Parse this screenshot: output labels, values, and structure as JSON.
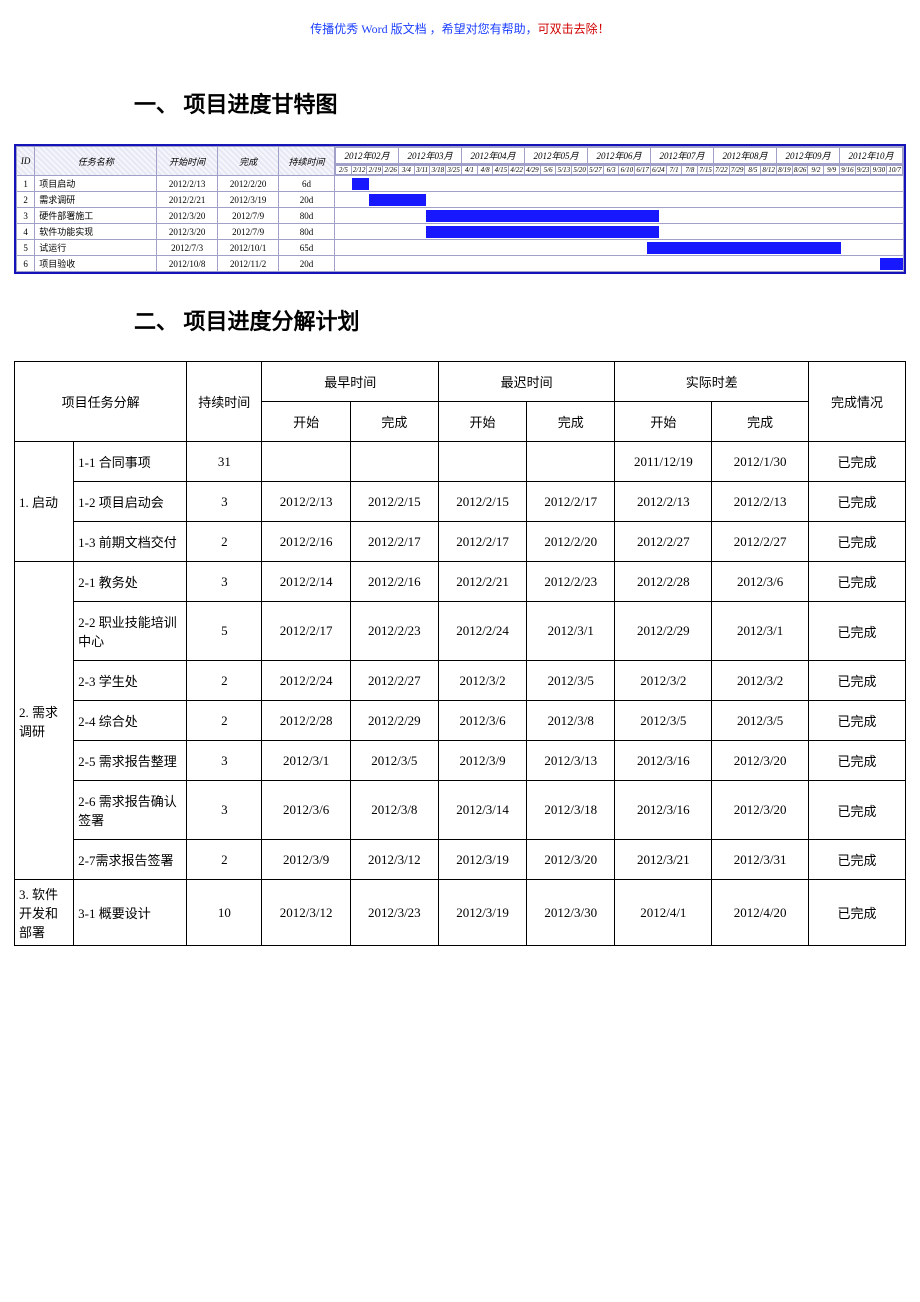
{
  "header": {
    "blue_text": "传播优秀 Word 版文档 ，希望对您有帮助，",
    "red_text": "可双击去除！"
  },
  "section1": {
    "number": "一、",
    "title": "项目进度甘特图"
  },
  "gantt": {
    "header": {
      "id": "ID",
      "task_name": "任务名称",
      "start": "开始时间",
      "end": "完成",
      "duration": "持续时间"
    },
    "months": [
      "2012年02月",
      "2012年03月",
      "2012年04月",
      "2012年05月",
      "2012年06月",
      "2012年07月",
      "2012年08月",
      "2012年09月",
      "2012年10月"
    ],
    "weeks": [
      "2/5",
      "2/12",
      "2/19",
      "2/26",
      "3/4",
      "3/11",
      "3/18",
      "3/25",
      "4/1",
      "4/8",
      "4/15",
      "4/22",
      "4/29",
      "5/6",
      "5/13",
      "5/20",
      "5/27",
      "6/3",
      "6/10",
      "6/17",
      "6/24",
      "7/1",
      "7/8",
      "7/15",
      "7/22",
      "7/29",
      "8/5",
      "8/12",
      "8/19",
      "8/26",
      "9/2",
      "9/9",
      "9/16",
      "9/23",
      "9/30",
      "10/7"
    ],
    "border_color": "#1313b8",
    "bar_color": "#1818ff",
    "rows": [
      {
        "id": "1",
        "name": "项目启动",
        "start": "2012/2/13",
        "end": "2012/2/20",
        "dur": "6d",
        "bar_left_pct": 3,
        "bar_width_pct": 3
      },
      {
        "id": "2",
        "name": "需求调研",
        "start": "2012/2/21",
        "end": "2012/3/19",
        "dur": "20d",
        "bar_left_pct": 6,
        "bar_width_pct": 10
      },
      {
        "id": "3",
        "name": "硬件部署施工",
        "start": "2012/3/20",
        "end": "2012/7/9",
        "dur": "80d",
        "bar_left_pct": 16,
        "bar_width_pct": 41
      },
      {
        "id": "4",
        "name": "软件功能实现",
        "start": "2012/3/20",
        "end": "2012/7/9",
        "dur": "80d",
        "bar_left_pct": 16,
        "bar_width_pct": 41
      },
      {
        "id": "5",
        "name": "试运行",
        "start": "2012/7/3",
        "end": "2012/10/1",
        "dur": "65d",
        "bar_left_pct": 55,
        "bar_width_pct": 34
      },
      {
        "id": "6",
        "name": "项目验收",
        "start": "2012/10/8",
        "end": "2012/11/2",
        "dur": "20d",
        "bar_left_pct": 96,
        "bar_width_pct": 4
      }
    ]
  },
  "section2": {
    "number": "二、",
    "title": "项目进度分解计划"
  },
  "detail": {
    "header": {
      "task_decomp": "项目任务分解",
      "duration": "持续时间",
      "earliest": "最早时间",
      "latest": "最迟时间",
      "actual": "实际时差",
      "completion": "完成情况",
      "start": "开始",
      "end": "完成"
    },
    "groups": [
      {
        "group_label": "1. 启动",
        "rows": [
          {
            "sub": "1-1 合同事项",
            "dur": "31",
            "es": "",
            "ef": "",
            "ls": "",
            "lf": "",
            "as": "2011/12/19",
            "af": "2012/1/30",
            "status": "已完成"
          },
          {
            "sub": "1-2 项目启动会",
            "dur": "3",
            "es": "2012/2/13",
            "ef": "2012/2/15",
            "ls": "2012/2/15",
            "lf": "2012/2/17",
            "as": "2012/2/13",
            "af": "2012/2/13",
            "status": "已完成"
          },
          {
            "sub": "1-3 前期文档交付",
            "dur": "2",
            "es": "2012/2/16",
            "ef": "2012/2/17",
            "ls": "2012/2/17",
            "lf": "2012/2/20",
            "as": "2012/2/27",
            "af": "2012/2/27",
            "status": "已完成"
          }
        ]
      },
      {
        "group_label": "2. 需求调研",
        "rows": [
          {
            "sub": "2-1 教务处",
            "dur": "3",
            "es": "2012/2/14",
            "ef": "2012/2/16",
            "ls": "2012/2/21",
            "lf": "2012/2/23",
            "as": "2012/2/28",
            "af": "2012/3/6",
            "status": "已完成"
          },
          {
            "sub": "2-2 职业技能培训中心",
            "dur": "5",
            "es": "2012/2/17",
            "ef": "2012/2/23",
            "ls": "2012/2/24",
            "lf": "2012/3/1",
            "as": "2012/2/29",
            "af": "2012/3/1",
            "status": "已完成"
          },
          {
            "sub": "2-3 学生处",
            "dur": "2",
            "es": "2012/2/24",
            "ef": "2012/2/27",
            "ls": "2012/3/2",
            "lf": "2012/3/5",
            "as": "2012/3/2",
            "af": "2012/3/2",
            "status": "已完成"
          },
          {
            "sub": "2-4 综合处",
            "dur": "2",
            "es": "2012/2/28",
            "ef": "2012/2/29",
            "ls": "2012/3/6",
            "lf": "2012/3/8",
            "as": "2012/3/5",
            "af": "2012/3/5",
            "status": "已完成"
          },
          {
            "sub": "2-5 需求报告整理",
            "dur": "3",
            "es": "2012/3/1",
            "ef": "2012/3/5",
            "ls": "2012/3/9",
            "lf": "2012/3/13",
            "as": "2012/3/16",
            "af": "2012/3/20",
            "status": "已完成"
          },
          {
            "sub": "2-6 需求报告确认签署",
            "dur": "3",
            "es": "2012/3/6",
            "ef": "2012/3/8",
            "ls": "2012/3/14",
            "lf": "2012/3/18",
            "as": "2012/3/16",
            "af": "2012/3/20",
            "status": "已完成"
          },
          {
            "sub": "2-7需求报告签署",
            "dur": "2",
            "es": "2012/3/9",
            "ef": "2012/3/12",
            "ls": "2012/3/19",
            "lf": "2012/3/20",
            "as": "2012/3/21",
            "af": "2012/3/31",
            "status": "已完成"
          }
        ]
      },
      {
        "group_label": "3. 软件开发和部署",
        "rows": [
          {
            "sub": "3-1 概要设计",
            "dur": "10",
            "es": "2012/3/12",
            "ef": "2012/3/23",
            "ls": "2012/3/19",
            "lf": "2012/3/30",
            "as": "2012/4/1",
            "af": "2012/4/20",
            "status": "已完成"
          }
        ]
      }
    ]
  }
}
